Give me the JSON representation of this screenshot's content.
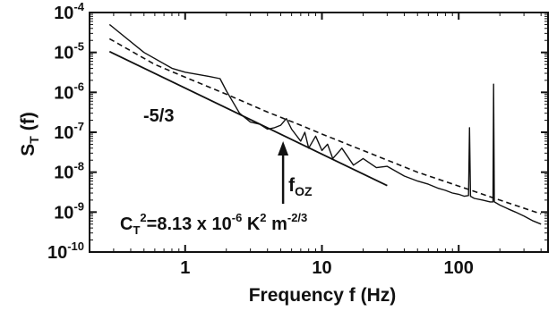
{
  "chart_data": {
    "type": "line",
    "title": "",
    "xlabel": "Frequency f (Hz)",
    "ylabel_main": "S",
    "ylabel_sub": "T",
    "ylabel_rest": " (f)",
    "x_scale": "log",
    "y_scale": "log",
    "xlim": [
      0.2,
      450
    ],
    "ylim": [
      1e-10,
      0.0001
    ],
    "x_ticks": [
      {
        "value": 1,
        "label": "1"
      },
      {
        "value": 10,
        "label": "10"
      },
      {
        "value": 100,
        "label": "100"
      }
    ],
    "y_ticks": [
      {
        "value": 0.0001,
        "mantissa": "10",
        "exp": "-4"
      },
      {
        "value": 1e-05,
        "mantissa": "10",
        "exp": "-5"
      },
      {
        "value": 1e-06,
        "mantissa": "10",
        "exp": "-6"
      },
      {
        "value": 1e-07,
        "mantissa": "10",
        "exp": "-7"
      },
      {
        "value": 1e-08,
        "mantissa": "10",
        "exp": "-8"
      },
      {
        "value": 1e-09,
        "mantissa": "10",
        "exp": "-9"
      },
      {
        "value": 1e-10,
        "mantissa": "10",
        "exp": "-10"
      }
    ],
    "grid": false,
    "legend": "none",
    "series": [
      {
        "style": "solid-noisy",
        "x": [
          0.28,
          0.5,
          0.8,
          1.0,
          1.5,
          1.8,
          2.0,
          2.5,
          3.0,
          3.5,
          4.0,
          4.5,
          5.0,
          5.5,
          6.0,
          7.0,
          7.5,
          8.0,
          9.0,
          10.0,
          11.0,
          12.0,
          14.0,
          17.0,
          20.0,
          25.0,
          30.0,
          40.0,
          50.0,
          60.0,
          70.0,
          80.0,
          90.0,
          100.0,
          110.0,
          118.0,
          120.0,
          122.0,
          130.0,
          150.0,
          170.0,
          178.0,
          180.0,
          182.0,
          200.0,
          230.0,
          260.0,
          300.0,
          350.0,
          400.0
        ],
        "y": [
          5e-05,
          1e-05,
          4e-06,
          3.2e-06,
          2.5e-06,
          2.2e-06,
          1.1e-06,
          3e-07,
          1.8e-07,
          1.6e-07,
          1.2e-07,
          1.3e-07,
          1.5e-07,
          2.2e-07,
          1.2e-07,
          6e-08,
          1e-07,
          4e-08,
          8e-08,
          3.5e-08,
          5e-08,
          2.2e-08,
          4e-08,
          1.5e-08,
          2.2e-08,
          1.3e-08,
          1.4e-08,
          8e-09,
          6e-09,
          5e-09,
          4e-09,
          3.5e-09,
          3e-09,
          2.8e-09,
          2.5e-09,
          2.6e-09,
          1.3e-07,
          2.5e-09,
          2.2e-09,
          2e-09,
          1.8e-09,
          1.8e-09,
          1.6e-06,
          1.8e-09,
          1.5e-09,
          1.2e-09,
          1e-09,
          8e-10,
          6e-10,
          5e-10
        ]
      },
      {
        "style": "dashed",
        "x": [
          0.28,
          0.6,
          1.0,
          2.0,
          4.0,
          7.0,
          10.0,
          20.0,
          50.0,
          100.0,
          200.0,
          400.0
        ],
        "y": [
          2.2e-05,
          5e-06,
          2.4e-06,
          9e-07,
          3.2e-07,
          1.5e-07,
          9e-08,
          3.5e-08,
          1e-08,
          4.5e-09,
          2e-09,
          9e-10
        ]
      },
      {
        "style": "reference-slope",
        "x": [
          0.28,
          30.0
        ],
        "y": [
          1.05e-05,
          4.6e-09
        ]
      }
    ],
    "annotations": {
      "slope_label": "-5/3",
      "marker_main": "f",
      "marker_sub": "OZ",
      "marker_x": 5.2,
      "ct_main": "C",
      "ct_sub": "T",
      "ct_sup": "2",
      "ct_eq": "=8.13 x 10",
      "ct_exp": "-6",
      "ct_k": " K",
      "ct_k_exp": "2",
      "ct_m": " m",
      "ct_m_exp": "-2/3"
    }
  }
}
